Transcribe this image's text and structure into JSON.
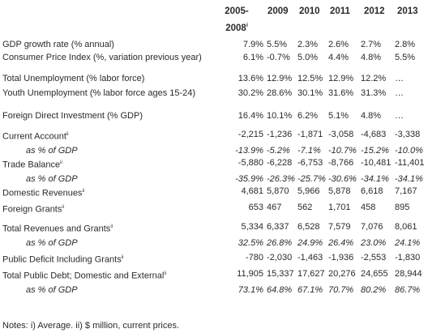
{
  "headers": {
    "col0": "2005-2008",
    "col0_note": "i",
    "years": [
      "2009",
      "2010",
      "2011",
      "2012",
      "2013"
    ]
  },
  "rows": [
    {
      "label": "GDP growth rate (% annual)",
      "note": "",
      "sub": false,
      "values": [
        "7.9%",
        "5.5%",
        "2.3%",
        "2.6%",
        "2.7%",
        "2.8%"
      ]
    },
    {
      "label": "Consumer Price Index (%, variation previous year)",
      "note": "",
      "sub": false,
      "values": [
        "6.1%",
        "-0.7%",
        "5.0%",
        "4.4%",
        "4.8%",
        "5.5%"
      ]
    },
    {
      "label": "Total Unemployment (% labor force)",
      "note": "",
      "sub": false,
      "values": [
        "13.6%",
        "12.9%",
        "12.5%",
        "12.9%",
        "12.2%",
        "…"
      ]
    },
    {
      "label": "Youth Unemployment (% labor force ages 15-24)",
      "note": "",
      "sub": false,
      "values": [
        "30.2%",
        "28.6%",
        "30.1%",
        "31.6%",
        "31.3%",
        "…"
      ]
    },
    {
      "label": "Foreign Direct Investment (% GDP)",
      "note": "",
      "sub": false,
      "values": [
        "16.4%",
        "10.1%",
        "6.2%",
        "5.1%",
        "4.8%",
        "…"
      ]
    },
    {
      "label": "Current Account",
      "note": "ii",
      "sub": false,
      "values": [
        "-2,215",
        "-1,236",
        "-1,871",
        "-3,058",
        "-4,683",
        "-3,338"
      ]
    },
    {
      "label": "as % of GDP",
      "note": "",
      "sub": true,
      "values": [
        "-13.9%",
        "-5.2%",
        "-7.1%",
        "-10.7%",
        "-15.2%",
        "-10.0%"
      ]
    },
    {
      "label": "Trade Balance",
      "note": "ii",
      "sub": false,
      "values": [
        "-5,880",
        "-6,228",
        "-6,753",
        "-8,766",
        "-10,481",
        "-11,401"
      ]
    },
    {
      "label": "as % of GDP",
      "note": "",
      "sub": true,
      "values": [
        "-35.9%",
        "-26.3%",
        "-25.7%",
        "-30.6%",
        "-34.1%",
        "-34.1%"
      ]
    },
    {
      "label": "Domestic Revenues",
      "note": "ii",
      "sub": false,
      "values": [
        "4,681",
        "5,870",
        "5,966",
        "5,878",
        "6,618",
        "7,167"
      ]
    },
    {
      "label": "Foreign Grants",
      "note": "ii",
      "sub": false,
      "values": [
        "653",
        "467",
        "562",
        "1,701",
        "458",
        "895"
      ]
    },
    {
      "label": "Total Revenues and Grants",
      "note": "ii",
      "sub": false,
      "values": [
        "5,334",
        "6,337",
        "6,528",
        "7,579",
        "7,076",
        "8,061"
      ]
    },
    {
      "label": "as % of GDP",
      "note": "",
      "sub": true,
      "values": [
        "32.5%",
        "26.8%",
        "24.9%",
        "26.4%",
        "23.0%",
        "24.1%"
      ]
    },
    {
      "label": "Public Deficit Including Grants",
      "note": "ii",
      "sub": false,
      "values": [
        "-780",
        "-2,030",
        "-1,463",
        "-1,936",
        "-2,553",
        "-1,830"
      ]
    },
    {
      "label": "Total Public Debt; Domestic and External",
      "note": "ii",
      "sub": false,
      "values": [
        "11,905",
        "15,337",
        "17,627",
        "20,276",
        "24,655",
        "28,944"
      ]
    },
    {
      "label": "as % of GDP",
      "note": "",
      "sub": true,
      "values": [
        "73.1%",
        "64.8%",
        "67.1%",
        "70.7%",
        "80.2%",
        "86.7%"
      ]
    }
  ],
  "notes": "Notes: i) Average. ii) $ million, current prices."
}
